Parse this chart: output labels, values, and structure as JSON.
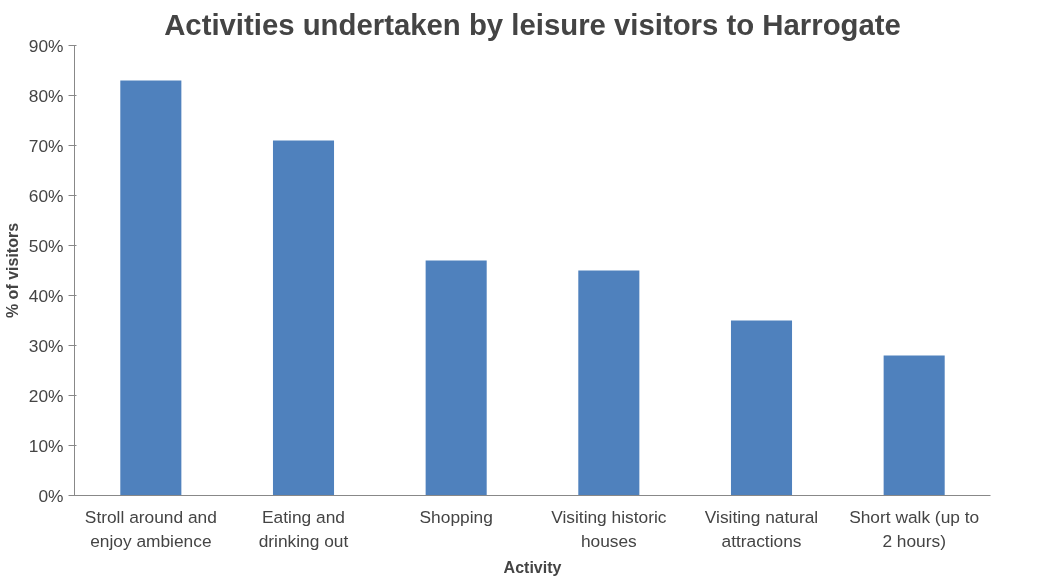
{
  "chart_data": {
    "type": "bar",
    "title": "Activities undertaken by leisure visitors to Harrogate",
    "xlabel": "Activity",
    "ylabel": "% of visitors",
    "categories": [
      "Stroll around and enjoy ambience",
      "Eating and drinking out",
      "Shopping",
      "Visiting historic houses",
      "Visiting natural attractions",
      "Short walk (up to 2 hours)"
    ],
    "values": [
      83,
      71,
      47,
      45,
      35,
      28
    ],
    "color": "#4f81bd",
    "ylim": [
      0,
      90
    ],
    "yticks": [
      {
        "value": 0,
        "label": "0%"
      },
      {
        "value": 10,
        "label": "10%"
      },
      {
        "value": 20,
        "label": "20%"
      },
      {
        "value": 30,
        "label": "30%"
      },
      {
        "value": 40,
        "label": "40%"
      },
      {
        "value": 50,
        "label": "50%"
      },
      {
        "value": 60,
        "label": "60%"
      },
      {
        "value": 70,
        "label": "70%"
      },
      {
        "value": 80,
        "label": "80%"
      },
      {
        "value": 90,
        "label": "90%"
      }
    ],
    "grid": false
  }
}
